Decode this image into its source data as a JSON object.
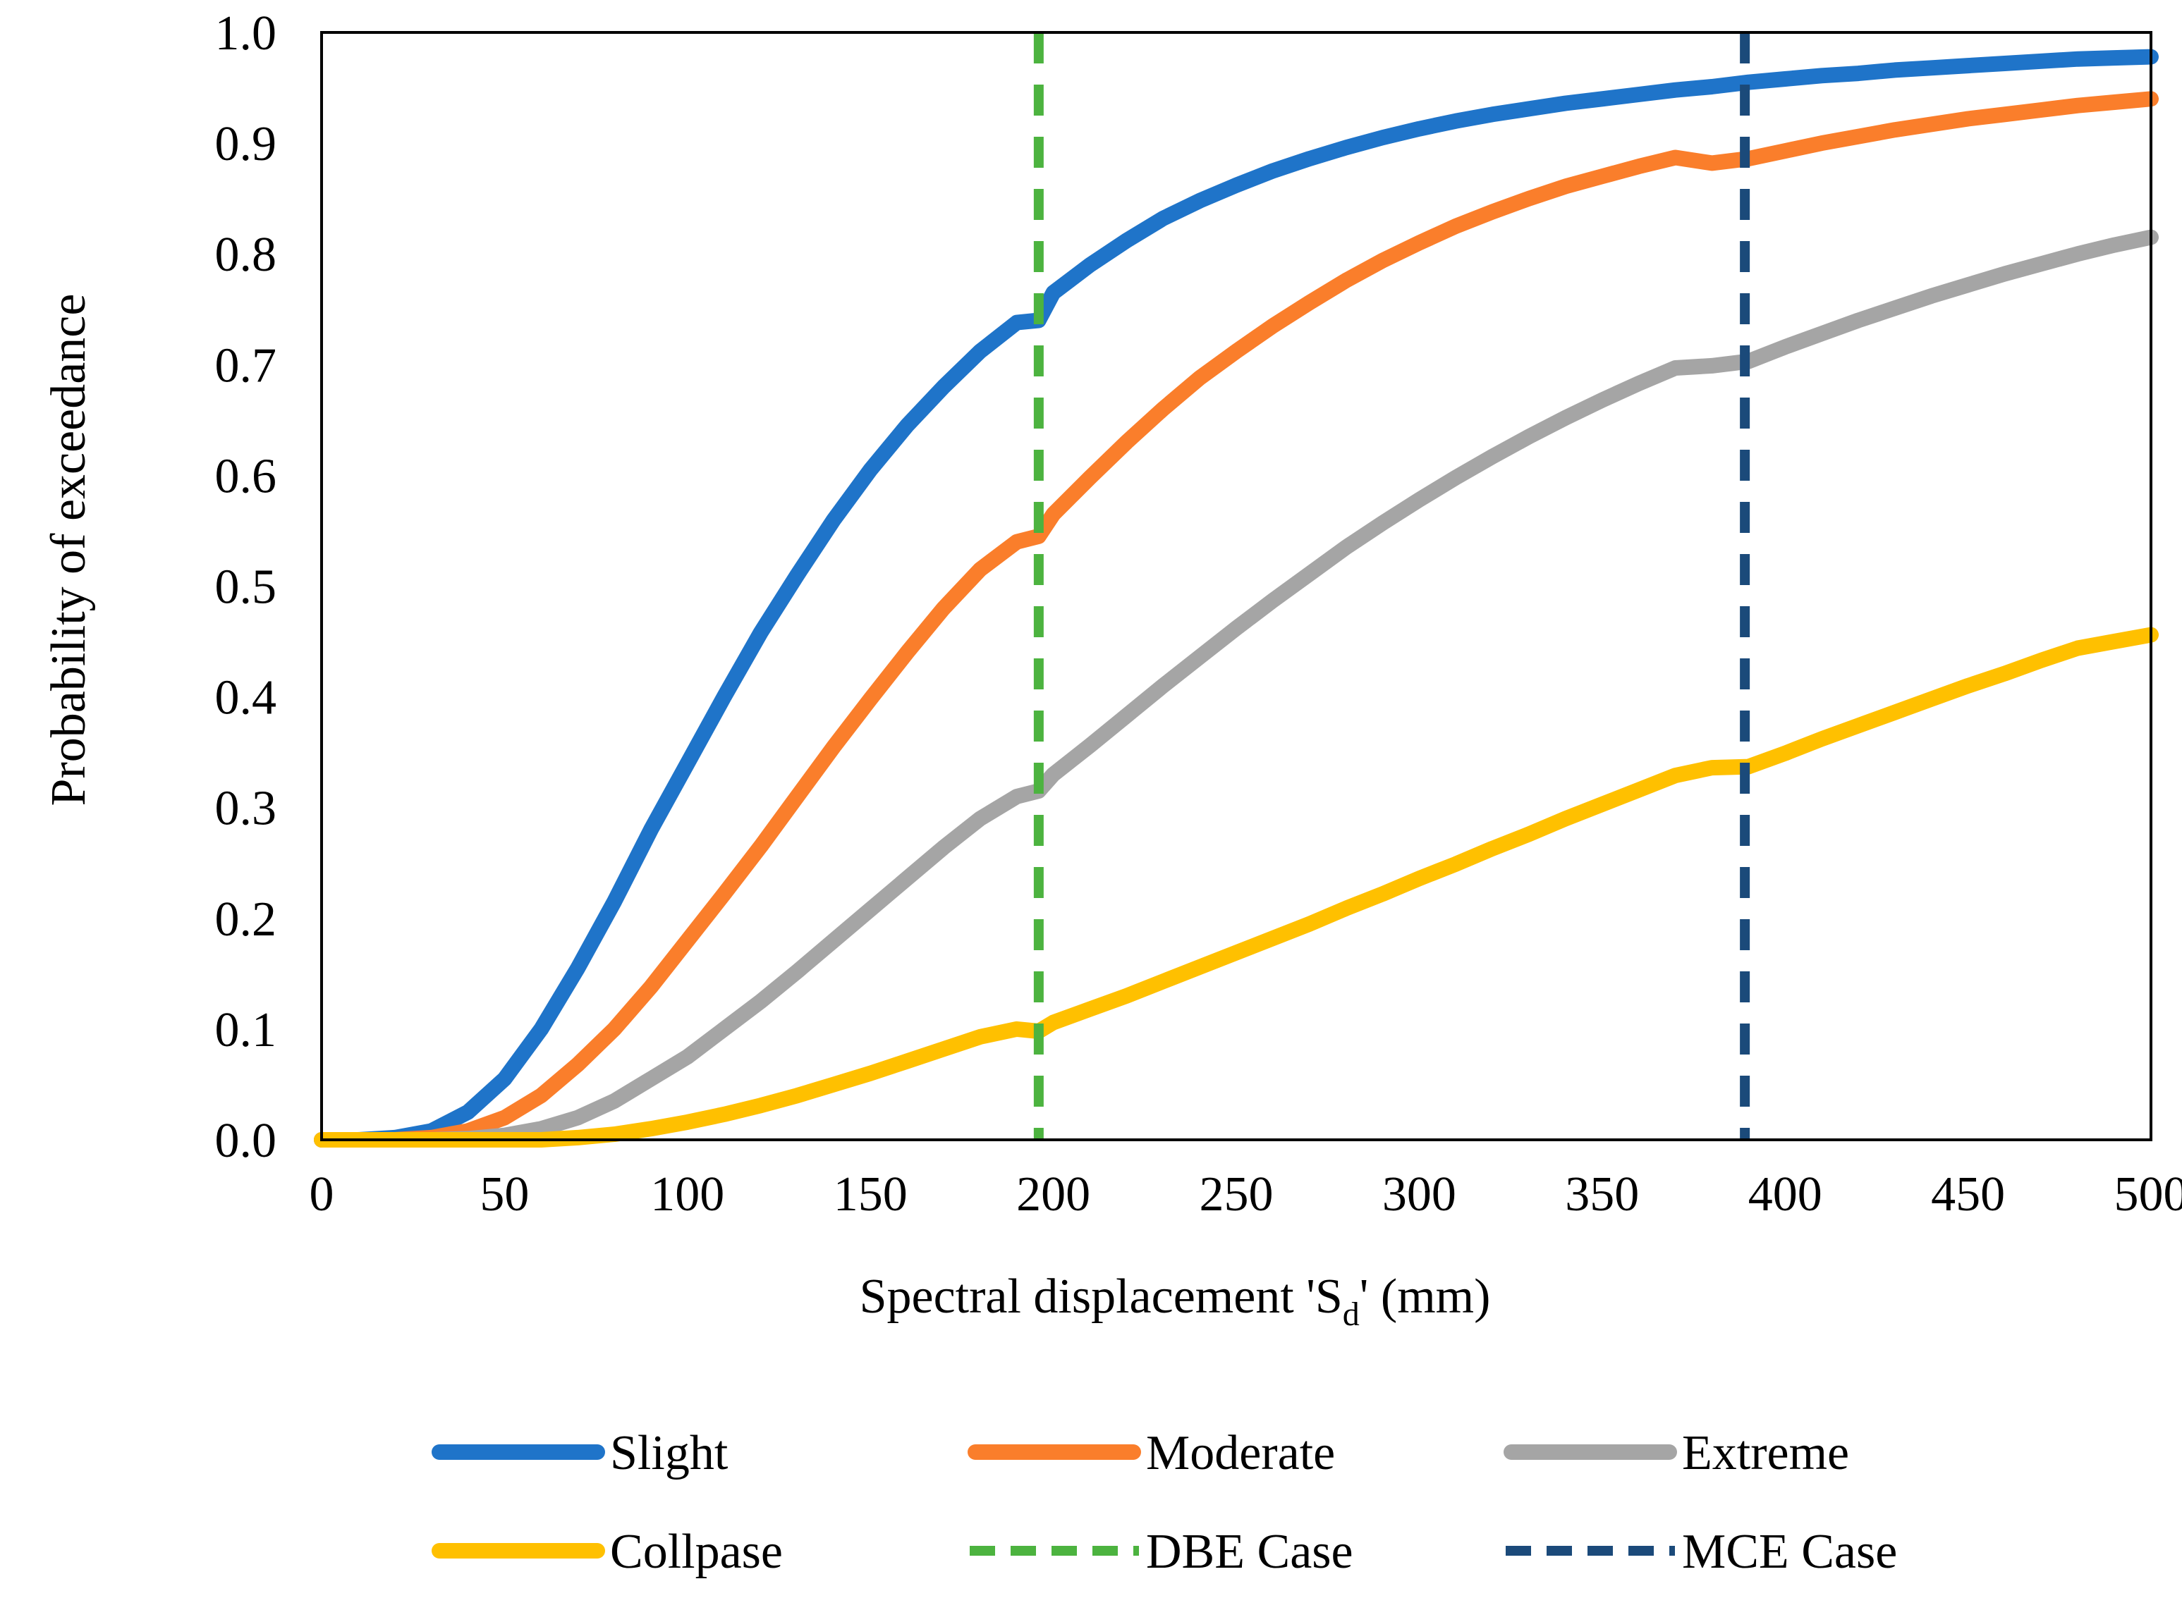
{
  "chart_data": {
    "type": "line",
    "title": "",
    "xlabel": {
      "main": "Spectral displacement 'S",
      "subscript": "d",
      "suffix": "' (mm)"
    },
    "ylabel": "Probability of exceedance",
    "xlim": [
      0,
      500
    ],
    "ylim": [
      0,
      1
    ],
    "x_ticks": [
      0,
      50,
      100,
      150,
      200,
      250,
      300,
      350,
      400,
      450,
      500
    ],
    "x_tick_labels": [
      "0",
      "50",
      "100",
      "150",
      "200",
      "250",
      "300",
      "350",
      "400",
      "450",
      "500"
    ],
    "y_ticks": [
      0,
      0.1,
      0.2,
      0.3,
      0.4,
      0.5,
      0.6,
      0.7,
      0.8,
      0.9,
      1.0
    ],
    "y_tick_labels": [
      "0.0",
      "0.1",
      "0.2",
      "0.3",
      "0.4",
      "0.5",
      "0.6",
      "0.7",
      "0.8",
      "0.9",
      "1.0"
    ],
    "grid": false,
    "legend_position": "bottom",
    "series": [
      {
        "name": "Slight",
        "color": "#1F74C9",
        "style": "solid",
        "x": [
          0,
          10,
          20,
          30,
          40,
          50,
          60,
          70,
          80,
          90,
          100,
          110,
          120,
          130,
          140,
          150,
          160,
          170,
          180,
          190,
          196,
          200,
          210,
          220,
          230,
          240,
          250,
          260,
          270,
          280,
          290,
          300,
          310,
          320,
          330,
          340,
          350,
          360,
          370,
          380,
          390,
          400,
          410,
          420,
          430,
          440,
          450,
          460,
          470,
          480,
          490,
          500
        ],
        "values": [
          0.0,
          0.0,
          0.002,
          0.008,
          0.025,
          0.055,
          0.1,
          0.155,
          0.215,
          0.28,
          0.34,
          0.4,
          0.458,
          0.51,
          0.56,
          0.605,
          0.645,
          0.68,
          0.712,
          0.738,
          0.74,
          0.765,
          0.79,
          0.812,
          0.832,
          0.848,
          0.862,
          0.875,
          0.886,
          0.896,
          0.905,
          0.913,
          0.92,
          0.926,
          0.931,
          0.936,
          0.94,
          0.944,
          0.948,
          0.951,
          0.955,
          0.958,
          0.961,
          0.963,
          0.966,
          0.968,
          0.97,
          0.972,
          0.974,
          0.976,
          0.977,
          0.978
        ]
      },
      {
        "name": "Moderate",
        "color": "#FA7E2B",
        "style": "solid",
        "x": [
          0,
          10,
          20,
          30,
          40,
          50,
          60,
          70,
          80,
          90,
          100,
          110,
          120,
          130,
          140,
          150,
          160,
          170,
          180,
          190,
          196,
          200,
          210,
          220,
          230,
          240,
          250,
          260,
          270,
          280,
          290,
          300,
          310,
          320,
          330,
          340,
          350,
          360,
          370,
          380,
          390,
          400,
          410,
          420,
          430,
          440,
          450,
          460,
          470,
          480,
          490,
          500
        ],
        "values": [
          0.0,
          0.0,
          0.0,
          0.002,
          0.008,
          0.02,
          0.04,
          0.068,
          0.1,
          0.138,
          0.18,
          0.222,
          0.265,
          0.31,
          0.355,
          0.398,
          0.44,
          0.48,
          0.515,
          0.54,
          0.545,
          0.565,
          0.598,
          0.63,
          0.66,
          0.688,
          0.712,
          0.735,
          0.756,
          0.776,
          0.794,
          0.81,
          0.825,
          0.838,
          0.85,
          0.861,
          0.87,
          0.879,
          0.887,
          0.882,
          0.886,
          0.893,
          0.9,
          0.906,
          0.912,
          0.917,
          0.922,
          0.926,
          0.93,
          0.934,
          0.937,
          0.94
        ]
      },
      {
        "name": "Extreme",
        "color": "#A5A5A5",
        "style": "solid",
        "x": [
          0,
          10,
          20,
          30,
          40,
          50,
          60,
          70,
          80,
          90,
          100,
          110,
          120,
          130,
          140,
          150,
          160,
          170,
          180,
          190,
          196,
          200,
          210,
          220,
          230,
          240,
          250,
          260,
          270,
          280,
          290,
          300,
          310,
          320,
          330,
          340,
          350,
          360,
          370,
          380,
          390,
          400,
          410,
          420,
          430,
          440,
          450,
          460,
          470,
          480,
          490,
          500
        ],
        "values": [
          0.0,
          0.0,
          0.0,
          0.0,
          0.001,
          0.004,
          0.01,
          0.02,
          0.035,
          0.055,
          0.075,
          0.1,
          0.125,
          0.152,
          0.18,
          0.208,
          0.236,
          0.264,
          0.29,
          0.31,
          0.315,
          0.33,
          0.356,
          0.383,
          0.41,
          0.436,
          0.462,
          0.487,
          0.511,
          0.535,
          0.557,
          0.578,
          0.598,
          0.617,
          0.635,
          0.652,
          0.668,
          0.683,
          0.697,
          0.699,
          0.703,
          0.716,
          0.728,
          0.74,
          0.751,
          0.762,
          0.772,
          0.782,
          0.791,
          0.8,
          0.808,
          0.815
        ]
      },
      {
        "name": "Collpase",
        "color": "#FFC000",
        "style": "solid",
        "x": [
          0,
          10,
          20,
          30,
          40,
          50,
          60,
          70,
          80,
          90,
          100,
          110,
          120,
          130,
          140,
          150,
          160,
          170,
          180,
          190,
          196,
          200,
          210,
          220,
          230,
          240,
          250,
          260,
          270,
          280,
          290,
          300,
          310,
          320,
          330,
          340,
          350,
          360,
          370,
          380,
          390,
          400,
          410,
          420,
          430,
          440,
          450,
          460,
          470,
          480,
          490,
          500
        ],
        "values": [
          0.0,
          0.0,
          0.0,
          0.0,
          0.0,
          0.0,
          0.0,
          0.002,
          0.005,
          0.01,
          0.016,
          0.023,
          0.031,
          0.04,
          0.05,
          0.06,
          0.071,
          0.082,
          0.093,
          0.1,
          0.098,
          0.106,
          0.118,
          0.13,
          0.143,
          0.156,
          0.169,
          0.182,
          0.195,
          0.209,
          0.222,
          0.236,
          0.249,
          0.263,
          0.276,
          0.29,
          0.303,
          0.316,
          0.329,
          0.336,
          0.337,
          0.349,
          0.362,
          0.374,
          0.386,
          0.398,
          0.41,
          0.421,
          0.433,
          0.444,
          0.45,
          0.456
        ]
      }
    ],
    "reference_lines": [
      {
        "name": "DBE Case",
        "color": "#4CB33F",
        "style": "dashed",
        "x": 196
      },
      {
        "name": "MCE Case",
        "color": "#1B4A7A",
        "style": "dashed",
        "x": 389
      }
    ],
    "legend": [
      {
        "label": "Slight",
        "color": "#1F74C9",
        "style": "solid"
      },
      {
        "label": "Moderate",
        "color": "#FA7E2B",
        "style": "solid"
      },
      {
        "label": "Extreme",
        "color": "#A5A5A5",
        "style": "solid"
      },
      {
        "label": "Collpase",
        "color": "#FFC000",
        "style": "solid"
      },
      {
        "label": "DBE Case",
        "color": "#4CB33F",
        "style": "dashed"
      },
      {
        "label": "MCE Case",
        "color": "#1B4A7A",
        "style": "dashed"
      }
    ]
  }
}
